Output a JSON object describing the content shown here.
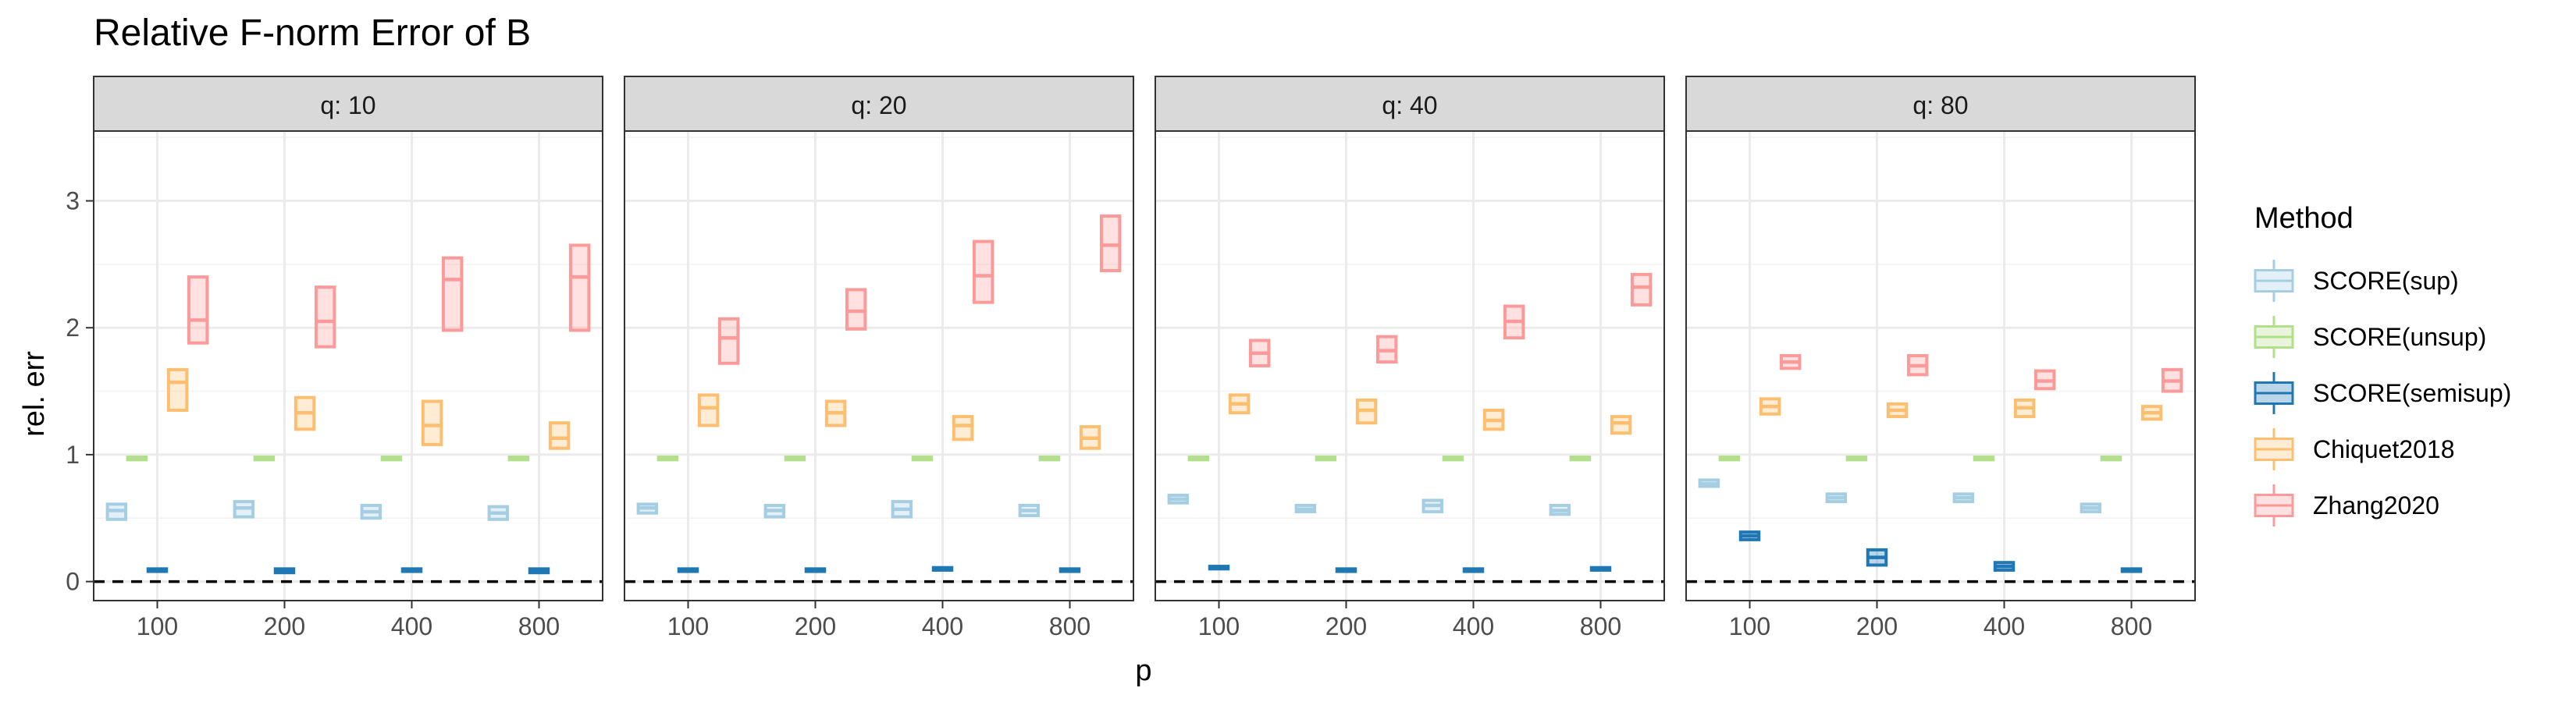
{
  "chart_data": {
    "type": "box",
    "title": "Relative F-norm Error of B",
    "xlabel": "p",
    "ylabel": "rel. err",
    "ylim": [
      -0.15,
      3.55
    ],
    "y_ticks": [
      0,
      1,
      2,
      3
    ],
    "reference_line": {
      "y": 0,
      "style": "dashed"
    },
    "grid": true,
    "categories": [
      "100",
      "200",
      "400",
      "800"
    ],
    "legend": {
      "title": "Method",
      "position": "right",
      "entries": [
        "SCORE(sup)",
        "SCORE(unsup)",
        "SCORE(semisup)",
        "Chiquet2018",
        "Zhang2020"
      ]
    },
    "series": [
      {
        "name": "SCORE(sup)",
        "color": "#a6cee3"
      },
      {
        "name": "SCORE(unsup)",
        "color": "#b2df8a"
      },
      {
        "name": "SCORE(semisup)",
        "color": "#1f78b4"
      },
      {
        "name": "Chiquet2018",
        "color": "#fdbf6f"
      },
      {
        "name": "Zhang2020",
        "color": "#fb9a99"
      }
    ],
    "facets": [
      {
        "label": "q: 10",
        "boxes": {
          "SCORE(sup)": [
            [
              0.49,
              0.56,
              0.61
            ],
            [
              0.51,
              0.58,
              0.63
            ],
            [
              0.5,
              0.55,
              0.6
            ],
            [
              0.49,
              0.54,
              0.59
            ]
          ],
          "SCORE(unsup)": [
            [
              0.96,
              0.97,
              0.98
            ],
            [
              0.96,
              0.97,
              0.98
            ],
            [
              0.96,
              0.97,
              0.98
            ],
            [
              0.96,
              0.97,
              0.98
            ]
          ],
          "SCORE(semisup)": [
            [
              0.08,
              0.09,
              0.1
            ],
            [
              0.07,
              0.08,
              0.1
            ],
            [
              0.08,
              0.09,
              0.1
            ],
            [
              0.07,
              0.08,
              0.1
            ]
          ],
          "Chiquet2018": [
            [
              1.35,
              1.57,
              1.67
            ],
            [
              1.2,
              1.33,
              1.45
            ],
            [
              1.08,
              1.23,
              1.42
            ],
            [
              1.05,
              1.13,
              1.25
            ]
          ],
          "Zhang2020": [
            [
              1.88,
              2.06,
              2.4
            ],
            [
              1.85,
              2.05,
              2.32
            ],
            [
              1.98,
              2.38,
              2.55
            ],
            [
              1.98,
              2.4,
              2.65
            ]
          ]
        }
      },
      {
        "label": "q: 20",
        "boxes": {
          "SCORE(sup)": [
            [
              0.54,
              0.58,
              0.61
            ],
            [
              0.51,
              0.56,
              0.6
            ],
            [
              0.51,
              0.57,
              0.63
            ],
            [
              0.52,
              0.56,
              0.6
            ]
          ],
          "SCORE(unsup)": [
            [
              0.96,
              0.97,
              0.98
            ],
            [
              0.96,
              0.97,
              0.98
            ],
            [
              0.96,
              0.97,
              0.98
            ],
            [
              0.96,
              0.97,
              0.98
            ]
          ],
          "SCORE(semisup)": [
            [
              0.08,
              0.09,
              0.1
            ],
            [
              0.08,
              0.09,
              0.1
            ],
            [
              0.09,
              0.1,
              0.11
            ],
            [
              0.08,
              0.09,
              0.1
            ]
          ],
          "Chiquet2018": [
            [
              1.23,
              1.37,
              1.47
            ],
            [
              1.23,
              1.33,
              1.42
            ],
            [
              1.12,
              1.23,
              1.3
            ],
            [
              1.05,
              1.13,
              1.22
            ]
          ],
          "Zhang2020": [
            [
              1.72,
              1.92,
              2.07
            ],
            [
              1.99,
              2.13,
              2.3
            ],
            [
              2.2,
              2.41,
              2.68
            ],
            [
              2.45,
              2.65,
              2.88
            ]
          ]
        }
      },
      {
        "label": "q: 40",
        "boxes": {
          "SCORE(sup)": [
            [
              0.62,
              0.65,
              0.68
            ],
            [
              0.55,
              0.57,
              0.6
            ],
            [
              0.55,
              0.6,
              0.64
            ],
            [
              0.53,
              0.56,
              0.6
            ]
          ],
          "SCORE(unsup)": [
            [
              0.96,
              0.97,
              0.98
            ],
            [
              0.96,
              0.97,
              0.98
            ],
            [
              0.96,
              0.97,
              0.98
            ],
            [
              0.96,
              0.97,
              0.98
            ]
          ],
          "SCORE(semisup)": [
            [
              0.1,
              0.11,
              0.12
            ],
            [
              0.08,
              0.09,
              0.1
            ],
            [
              0.08,
              0.09,
              0.1
            ],
            [
              0.09,
              0.1,
              0.11
            ]
          ],
          "Chiquet2018": [
            [
              1.33,
              1.4,
              1.47
            ],
            [
              1.25,
              1.35,
              1.43
            ],
            [
              1.2,
              1.27,
              1.35
            ],
            [
              1.17,
              1.25,
              1.3
            ]
          ],
          "Zhang2020": [
            [
              1.7,
              1.8,
              1.9
            ],
            [
              1.73,
              1.82,
              1.93
            ],
            [
              1.92,
              2.05,
              2.17
            ],
            [
              2.18,
              2.32,
              2.42
            ]
          ]
        }
      },
      {
        "label": "q: 80",
        "boxes": {
          "SCORE(sup)": [
            [
              0.75,
              0.77,
              0.8
            ],
            [
              0.63,
              0.66,
              0.69
            ],
            [
              0.63,
              0.66,
              0.69
            ],
            [
              0.55,
              0.58,
              0.61
            ]
          ],
          "SCORE(unsup)": [
            [
              0.96,
              0.97,
              0.98
            ],
            [
              0.96,
              0.97,
              0.98
            ],
            [
              0.96,
              0.97,
              0.98
            ],
            [
              0.96,
              0.97,
              0.98
            ]
          ],
          "SCORE(semisup)": [
            [
              0.33,
              0.36,
              0.39
            ],
            [
              0.13,
              0.19,
              0.25
            ],
            [
              0.09,
              0.12,
              0.15
            ],
            [
              0.08,
              0.09,
              0.1
            ]
          ],
          "Chiquet2018": [
            [
              1.32,
              1.38,
              1.44
            ],
            [
              1.3,
              1.35,
              1.4
            ],
            [
              1.3,
              1.37,
              1.43
            ],
            [
              1.28,
              1.33,
              1.38
            ]
          ],
          "Zhang2020": [
            [
              1.68,
              1.73,
              1.78
            ],
            [
              1.63,
              1.7,
              1.78
            ],
            [
              1.52,
              1.58,
              1.66
            ],
            [
              1.5,
              1.58,
              1.67
            ]
          ]
        }
      }
    ]
  }
}
